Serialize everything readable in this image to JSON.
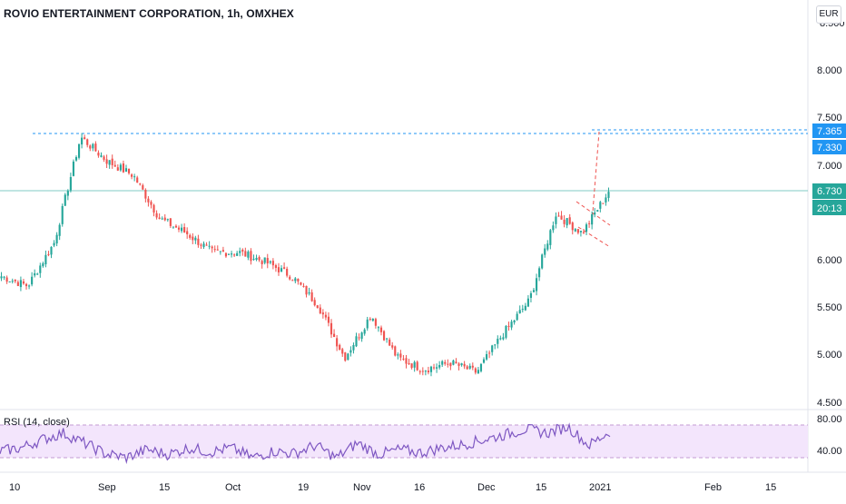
{
  "header": {
    "title": "ROVIO ENTERTAINMENT CORPORATION, 1h, OMXHEX",
    "currency": "EUR"
  },
  "price_axis": {
    "top_cut_label": "8.500",
    "ticks": [
      "8.000",
      "7.500",
      "7.000",
      "6.000",
      "5.500",
      "5.000",
      "4.500"
    ]
  },
  "price_tags": {
    "resistance_upper": "7.365",
    "resistance_lower": "7.330",
    "last_price": "6.730",
    "countdown": "20:13"
  },
  "rsi": {
    "label": "RSI (14, close)",
    "upper_level": "80.00",
    "lower_level": "40.00"
  },
  "time_axis": {
    "labels": [
      "10",
      "Sep",
      "15",
      "Oct",
      "19",
      "Nov",
      "16",
      "Dec",
      "15",
      "2021",
      "Feb",
      "15"
    ]
  },
  "colors": {
    "up": "#26a69a",
    "down": "#ef5350",
    "rsi_line": "#7e57c2",
    "rsi_band": "#f3e5fc",
    "horizontal_line": "#2196f3",
    "last_price_line": "#80cbc4",
    "pattern_lines": "#ef5350"
  },
  "chart_data": {
    "type": "candlestick",
    "symbol": "ROVIO ENTERTAINMENT CORPORATION",
    "interval": "1h",
    "exchange": "OMXHEX",
    "currency": "EUR",
    "y_range": [
      4.5,
      8.5
    ],
    "y_ticks": [
      4.5,
      5.0,
      5.5,
      6.0,
      7.0,
      7.5,
      8.0
    ],
    "x_labels": [
      "10",
      "Sep",
      "15",
      "Oct",
      "19",
      "Nov",
      "16",
      "Dec",
      "15",
      "2021",
      "Feb",
      "15"
    ],
    "last_price": 6.73,
    "horizontal_levels": [
      7.365,
      7.33
    ],
    "approx_close_path": [
      {
        "x": "Aug 3",
        "close": 5.85
      },
      {
        "x": "Aug 10",
        "close": 5.75
      },
      {
        "x": "Aug 14",
        "close": 6.2
      },
      {
        "x": "Aug 18",
        "close": 7.3
      },
      {
        "x": "Aug 24",
        "close": 7.05
      },
      {
        "x": "Sep 1",
        "close": 6.9
      },
      {
        "x": "Sep 8",
        "close": 6.45
      },
      {
        "x": "Sep 15",
        "close": 6.3
      },
      {
        "x": "Sep 22",
        "close": 6.1
      },
      {
        "x": "Oct 1",
        "close": 6.1
      },
      {
        "x": "Oct 12",
        "close": 6.0
      },
      {
        "x": "Oct 19",
        "close": 5.85
      },
      {
        "x": "Oct 26",
        "close": 5.55
      },
      {
        "x": "Nov 2",
        "close": 5.0
      },
      {
        "x": "Nov 9",
        "close": 5.45
      },
      {
        "x": "Nov 12",
        "close": 5.0
      },
      {
        "x": "Nov 20",
        "close": 4.88
      },
      {
        "x": "Dec 1",
        "close": 4.95
      },
      {
        "x": "Dec 7",
        "close": 4.85
      },
      {
        "x": "Dec 15",
        "close": 5.25
      },
      {
        "x": "Dec 21",
        "close": 5.6
      },
      {
        "x": "Dec 28",
        "close": 6.5
      },
      {
        "x": "Jan 1",
        "close": 6.3
      },
      {
        "x": "Jan 4",
        "close": 6.73
      }
    ],
    "rsi": {
      "period": 14,
      "source": "close",
      "levels": [
        80,
        40
      ],
      "approx_values": [
        48,
        52,
        62,
        70,
        58,
        45,
        40,
        50,
        44,
        52,
        47,
        52,
        40,
        48,
        45,
        55,
        40,
        58,
        44,
        50,
        46,
        52,
        56,
        62,
        68,
        75,
        70,
        78,
        55,
        72
      ]
    }
  }
}
